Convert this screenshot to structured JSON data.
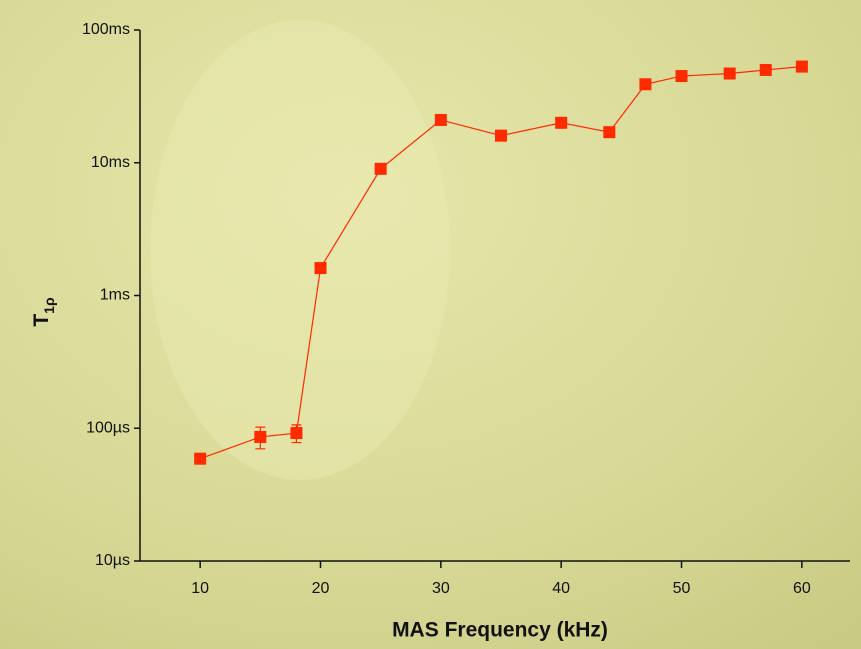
{
  "chart_data": {
    "type": "line",
    "x_label": "MAS Frequency (kHz)",
    "y_label": {
      "main": "T",
      "sub": "1ρ"
    },
    "x": [
      10,
      15,
      18,
      20,
      25,
      30,
      35,
      40,
      44,
      47,
      50,
      54,
      57,
      60
    ],
    "series": [
      {
        "color": "#ff2a00",
        "values": [
          59,
          86,
          92,
          1610,
          9000,
          21000,
          16000,
          20000,
          17000,
          39000,
          45000,
          47000,
          50000,
          53000
        ],
        "errors": [
          null,
          16,
          14,
          null,
          null,
          null,
          null,
          null,
          null,
          null,
          null,
          null,
          null,
          null
        ]
      }
    ],
    "xlim": [
      5,
      64
    ],
    "xticks": [
      10,
      20,
      30,
      40,
      50,
      60
    ],
    "ylim": [
      10,
      100000
    ],
    "yticks": [
      {
        "value": 10,
        "label": "10µs"
      },
      {
        "value": 100,
        "label": "100µs"
      },
      {
        "value": 1000,
        "label": "1ms"
      },
      {
        "value": 10000,
        "label": "10ms"
      },
      {
        "value": 100000,
        "label": "100ms"
      }
    ],
    "y_scale": "log"
  }
}
